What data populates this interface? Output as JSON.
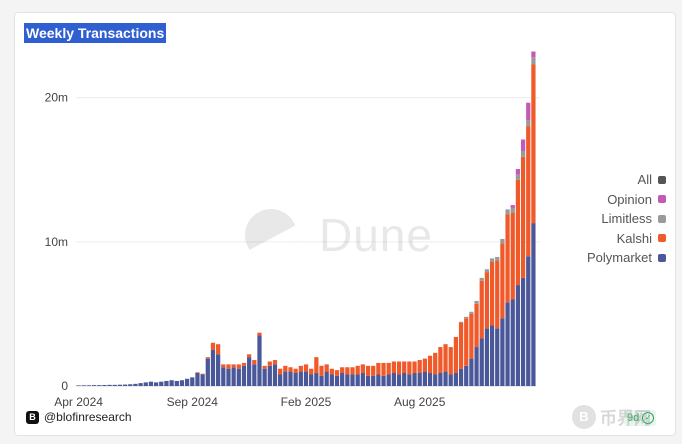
{
  "header": {
    "title": "Weekly Transactions"
  },
  "watermark": {
    "text": "Dune",
    "icon": "dune-logo-icon"
  },
  "footer": {
    "handle": "@blofinresearch",
    "brand_icon_letter": "B",
    "age_label": "9d"
  },
  "site_mark": {
    "glyph": "B",
    "text": "币界网"
  },
  "colors": {
    "Polymarket": "#4a5899",
    "Kalshi": "#f05a2a",
    "Limitless": "#9a9a9a",
    "Opinion": "#c45ab8",
    "All": "#555555"
  },
  "chart_data": {
    "type": "bar",
    "stacked": true,
    "title": "Weekly Transactions",
    "xlabel": "",
    "ylabel": "",
    "ylim": [
      0,
      24000000
    ],
    "y_ticks": [
      0,
      10000000,
      20000000
    ],
    "y_tick_labels": [
      "0",
      "10m",
      "20m"
    ],
    "x_ticks": [
      {
        "index": 0,
        "label": "Apr 2024"
      },
      {
        "index": 22,
        "label": "Sep 2024"
      },
      {
        "index": 44,
        "label": "Feb 2025"
      },
      {
        "index": 66,
        "label": "Aug 2025"
      }
    ],
    "grid": true,
    "legend": {
      "position": "right",
      "entries": [
        "All",
        "Opinion",
        "Limitless",
        "Kalshi",
        "Polymarket"
      ]
    },
    "series": [
      {
        "name": "Polymarket",
        "values": [
          40000,
          50000,
          50000,
          60000,
          60000,
          70000,
          80000,
          80000,
          90000,
          100000,
          120000,
          150000,
          200000,
          250000,
          300000,
          250000,
          300000,
          350000,
          400000,
          350000,
          400000,
          500000,
          600000,
          900000,
          800000,
          1900000,
          2500000,
          2200000,
          1300000,
          1200000,
          1300000,
          1200000,
          1400000,
          2000000,
          1500000,
          3500000,
          1200000,
          1400000,
          1500000,
          800000,
          1000000,
          1000000,
          900000,
          1000000,
          1000000,
          800000,
          900000,
          700000,
          1000000,
          800000,
          700000,
          900000,
          800000,
          800000,
          800000,
          900000,
          700000,
          700000,
          800000,
          700000,
          800000,
          900000,
          800000,
          900000,
          800000,
          900000,
          900000,
          1000000,
          900000,
          800000,
          900000,
          1000000,
          800000,
          900000,
          1200000,
          1400000,
          1900000,
          2700000,
          3300000,
          4000000,
          4200000,
          4000000,
          4700000,
          5800000,
          6000000,
          7000000,
          7500000,
          9000000,
          11300000
        ]
      },
      {
        "name": "Kalshi",
        "values": [
          0,
          0,
          0,
          0,
          0,
          0,
          0,
          0,
          0,
          0,
          0,
          0,
          0,
          0,
          0,
          0,
          0,
          0,
          0,
          0,
          0,
          0,
          0,
          50000,
          50000,
          100000,
          500000,
          700000,
          200000,
          300000,
          200000,
          300000,
          200000,
          200000,
          300000,
          200000,
          200000,
          300000,
          300000,
          400000,
          400000,
          300000,
          300000,
          400000,
          500000,
          400000,
          1100000,
          700000,
          500000,
          400000,
          400000,
          400000,
          500000,
          500000,
          600000,
          600000,
          700000,
          700000,
          800000,
          900000,
          800000,
          800000,
          900000,
          800000,
          900000,
          800000,
          900000,
          900000,
          1200000,
          1500000,
          1800000,
          1900000,
          1900000,
          2500000,
          3200000,
          3300000,
          3100000,
          3000000,
          4000000,
          3900000,
          4400000,
          4700000,
          5200000,
          6100000,
          6000000,
          7300000,
          8400000,
          9000000,
          11000000
        ]
      },
      {
        "name": "Limitless",
        "values": [
          0,
          0,
          0,
          0,
          0,
          0,
          0,
          0,
          0,
          0,
          0,
          0,
          0,
          0,
          0,
          0,
          0,
          0,
          0,
          0,
          0,
          0,
          0,
          0,
          0,
          0,
          0,
          0,
          0,
          0,
          0,
          0,
          0,
          0,
          0,
          0,
          0,
          0,
          0,
          0,
          0,
          0,
          0,
          0,
          0,
          0,
          0,
          0,
          0,
          0,
          0,
          0,
          0,
          0,
          0,
          0,
          0,
          0,
          0,
          0,
          0,
          0,
          0,
          0,
          0,
          0,
          0,
          0,
          0,
          0,
          0,
          0,
          0,
          0,
          50000,
          100000,
          150000,
          200000,
          200000,
          200000,
          250000,
          250000,
          300000,
          350000,
          350000,
          350000,
          400000,
          450000,
          500000
        ]
      },
      {
        "name": "Opinion",
        "values": [
          0,
          0,
          0,
          0,
          0,
          0,
          0,
          0,
          0,
          0,
          0,
          0,
          0,
          0,
          0,
          0,
          0,
          0,
          0,
          0,
          0,
          0,
          0,
          0,
          0,
          0,
          0,
          0,
          0,
          0,
          0,
          0,
          0,
          0,
          0,
          0,
          0,
          0,
          0,
          0,
          0,
          0,
          0,
          0,
          0,
          0,
          0,
          0,
          0,
          0,
          0,
          0,
          0,
          0,
          0,
          0,
          0,
          0,
          0,
          0,
          0,
          0,
          0,
          0,
          0,
          0,
          0,
          0,
          0,
          0,
          0,
          0,
          0,
          0,
          0,
          0,
          0,
          0,
          0,
          0,
          0,
          0,
          0,
          0,
          200000,
          400000,
          800000,
          1200000,
          400000
        ]
      },
      {
        "name": "All",
        "values": [
          0,
          0,
          0,
          0,
          0,
          0,
          0,
          0,
          0,
          0,
          0,
          0,
          0,
          0,
          0,
          0,
          0,
          0,
          0,
          0,
          0,
          0,
          0,
          0,
          0,
          0,
          0,
          0,
          0,
          0,
          0,
          0,
          0,
          0,
          0,
          0,
          0,
          0,
          0,
          0,
          0,
          0,
          0,
          0,
          0,
          0,
          0,
          0,
          0,
          0,
          0,
          0,
          0,
          0,
          0,
          0,
          0,
          0,
          0,
          0,
          0,
          0,
          0,
          0,
          0,
          0,
          0,
          0,
          0,
          0,
          0,
          0,
          0,
          0,
          0,
          0,
          0,
          0,
          0,
          0,
          0,
          0,
          0,
          0,
          0,
          0,
          0,
          0,
          0
        ]
      }
    ]
  }
}
